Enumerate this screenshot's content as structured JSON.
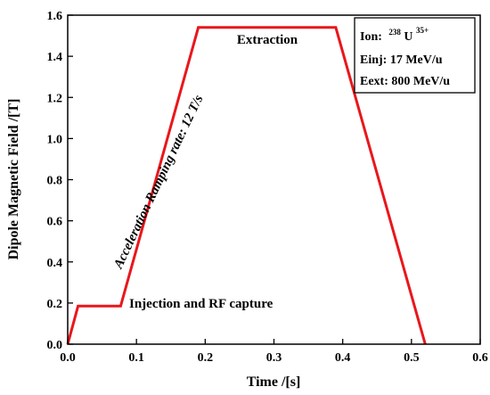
{
  "chart_data": {
    "type": "line",
    "xlabel": "Time /[s]",
    "ylabel": "Dipole Magnetic Field /[T]",
    "xlim": [
      0.0,
      0.6
    ],
    "ylim": [
      0.0,
      1.6
    ],
    "x_ticks": [
      "0.0",
      "0.1",
      "0.2",
      "0.3",
      "0.4",
      "0.5",
      "0.6"
    ],
    "y_ticks": [
      "0.0",
      "0.2",
      "0.4",
      "0.6",
      "0.8",
      "1.0",
      "1.2",
      "1.4",
      "1.6"
    ],
    "grid": false,
    "series": [
      {
        "color": "#e8171c",
        "x": [
          0.0,
          0.015,
          0.077,
          0.19,
          0.39,
          0.52
        ],
        "y": [
          0.0,
          0.185,
          0.185,
          1.54,
          1.54,
          0.0
        ]
      }
    ],
    "annotations": {
      "injection": "Injection and RF capture",
      "ramp": "Acceleration Ramping rate: 12 T/s",
      "extraction": "Extraction"
    },
    "legend_box": {
      "position": "top-right",
      "ion_label": "Ion:",
      "ion_mass": "238",
      "ion_element": "U",
      "ion_charge": "35+",
      "einj": "Einj: 17 MeV/u",
      "eext": "Eext: 800 MeV/u"
    }
  }
}
